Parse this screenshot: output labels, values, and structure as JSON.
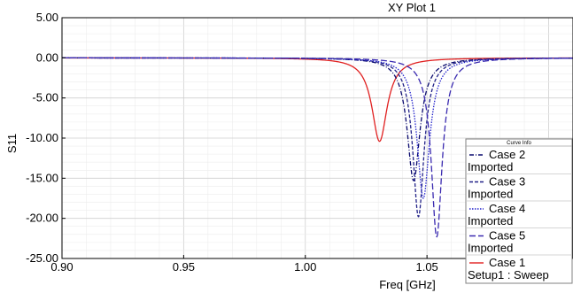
{
  "chart_data": {
    "type": "line",
    "title": "XY Plot 1",
    "xlabel": "Freq [GHz]",
    "ylabel": "S11",
    "xlim": [
      0.9,
      1.11
    ],
    "ylim": [
      -25,
      5
    ],
    "grid": true,
    "x_ticks": [
      0.9,
      0.95,
      1.0,
      1.05,
      1.1
    ],
    "x_tick_labels": [
      "0.90",
      "0.95",
      "1.00",
      "1.05",
      "1.10"
    ],
    "y_ticks": [
      5,
      0,
      -5,
      -10,
      -15,
      -20,
      -25
    ],
    "y_tick_labels": [
      "5.00",
      "0.00",
      "-5.00",
      "-10.00",
      "-15.00",
      "-20.00",
      "-25.00"
    ],
    "legend": {
      "position": "bottom-right",
      "header": "Curve Info",
      "entries": [
        {
          "line1": "Case 2",
          "line2": "Imported",
          "color": "#0a0a6e",
          "dash": "dashdot"
        },
        {
          "line1": "Case 3",
          "line2": "Imported",
          "color": "#222288",
          "dash": "dashed"
        },
        {
          "line1": "Case 4",
          "line2": "Imported",
          "color": "#2222cc",
          "dash": "dotted"
        },
        {
          "line1": "Case 5",
          "line2": "Imported",
          "color": "#3a2ab0",
          "dash": "longdash"
        },
        {
          "line1": "Case 1",
          "line2": "Setup1 : Sweep",
          "color": "#e02020",
          "dash": "solid"
        }
      ]
    },
    "series": [
      {
        "name": "Case 2 Imported",
        "color": "#0a0a6e",
        "dash": "dashdot",
        "f0": 1.0445,
        "min": -15.3,
        "width": 0.0032
      },
      {
        "name": "Case 3 Imported",
        "color": "#222288",
        "dash": "dashed",
        "f0": 1.0465,
        "min": -19.8,
        "width": 0.0028
      },
      {
        "name": "Case 4 Imported",
        "color": "#2222cc",
        "dash": "dotted",
        "f0": 1.0485,
        "min": -17.5,
        "width": 0.0031
      },
      {
        "name": "Case 5 Imported",
        "color": "#3a2ab0",
        "dash": "longdash",
        "f0": 1.054,
        "min": -22.3,
        "width": 0.0027
      },
      {
        "name": "Case 1 Setup1 : Sweep",
        "color": "#e02020",
        "dash": "solid",
        "f0": 1.0305,
        "min": -10.4,
        "width": 0.0038
      }
    ]
  }
}
